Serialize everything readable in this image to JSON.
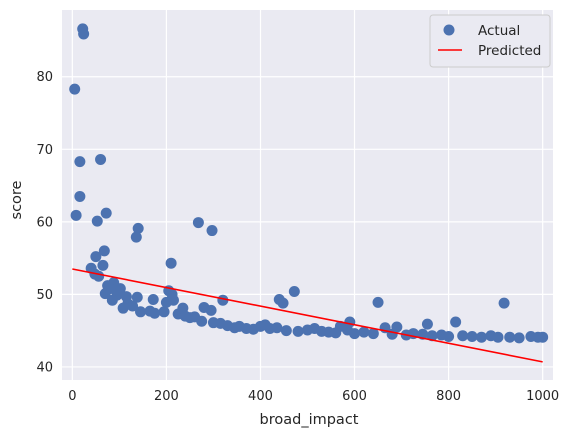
{
  "chart_data": {
    "type": "scatter",
    "title": "",
    "xlabel": "broad_impact",
    "ylabel": "score",
    "xlim": [
      -22,
      1022
    ],
    "ylim": [
      38.2,
      89.2
    ],
    "xticks": [
      0,
      200,
      400,
      600,
      800,
      1000
    ],
    "yticks": [
      40,
      50,
      60,
      70,
      80
    ],
    "grid": true,
    "legend": {
      "position": "top-right",
      "entries": [
        "Actual",
        "Predicted"
      ]
    },
    "colors": {
      "actual": "#4c72b0",
      "predicted": "#ff0000",
      "background": "#eaeaf2",
      "grid": "#ffffff"
    },
    "series": [
      {
        "name": "Actual",
        "type": "scatter",
        "points": [
          [
            22,
            86.6
          ],
          [
            24,
            85.9
          ],
          [
            5,
            78.3
          ],
          [
            16,
            68.3
          ],
          [
            60,
            68.6
          ],
          [
            16,
            63.5
          ],
          [
            72,
            61.2
          ],
          [
            8,
            60.9
          ],
          [
            53,
            60.1
          ],
          [
            268,
            59.9
          ],
          [
            297,
            58.8
          ],
          [
            140,
            59.1
          ],
          [
            136,
            57.9
          ],
          [
            68,
            56.0
          ],
          [
            210,
            54.3
          ],
          [
            50,
            55.2
          ],
          [
            40,
            53.6
          ],
          [
            65,
            54.0
          ],
          [
            48,
            52.8
          ],
          [
            56,
            52.5
          ],
          [
            75,
            51.2
          ],
          [
            88,
            51.6
          ],
          [
            80,
            50.8
          ],
          [
            102,
            50.8
          ],
          [
            70,
            50.1
          ],
          [
            95,
            49.9
          ],
          [
            85,
            49.2
          ],
          [
            115,
            49.7
          ],
          [
            118,
            48.7
          ],
          [
            138,
            49.6
          ],
          [
            108,
            48.1
          ],
          [
            128,
            48.4
          ],
          [
            145,
            47.6
          ],
          [
            165,
            47.7
          ],
          [
            175,
            47.4
          ],
          [
            172,
            49.3
          ],
          [
            195,
            47.6
          ],
          [
            200,
            48.9
          ],
          [
            205,
            50.5
          ],
          [
            212,
            50.0
          ],
          [
            215,
            49.2
          ],
          [
            225,
            47.3
          ],
          [
            235,
            48.1
          ],
          [
            240,
            47.0
          ],
          [
            250,
            46.8
          ],
          [
            260,
            46.9
          ],
          [
            275,
            46.3
          ],
          [
            280,
            48.2
          ],
          [
            295,
            47.8
          ],
          [
            300,
            46.1
          ],
          [
            315,
            46.0
          ],
          [
            320,
            49.2
          ],
          [
            330,
            45.7
          ],
          [
            345,
            45.4
          ],
          [
            355,
            45.6
          ],
          [
            370,
            45.3
          ],
          [
            385,
            45.2
          ],
          [
            400,
            45.6
          ],
          [
            410,
            45.8
          ],
          [
            420,
            45.3
          ],
          [
            435,
            45.4
          ],
          [
            440,
            49.3
          ],
          [
            448,
            48.8
          ],
          [
            455,
            45.0
          ],
          [
            472,
            50.4
          ],
          [
            480,
            44.9
          ],
          [
            500,
            45.1
          ],
          [
            515,
            45.3
          ],
          [
            530,
            44.9
          ],
          [
            545,
            44.8
          ],
          [
            560,
            44.7
          ],
          [
            570,
            45.6
          ],
          [
            585,
            45.1
          ],
          [
            590,
            46.2
          ],
          [
            600,
            44.6
          ],
          [
            620,
            44.8
          ],
          [
            640,
            44.6
          ],
          [
            650,
            48.9
          ],
          [
            665,
            45.4
          ],
          [
            680,
            44.5
          ],
          [
            690,
            45.5
          ],
          [
            710,
            44.4
          ],
          [
            725,
            44.6
          ],
          [
            745,
            44.5
          ],
          [
            755,
            45.9
          ],
          [
            765,
            44.3
          ],
          [
            785,
            44.4
          ],
          [
            800,
            44.2
          ],
          [
            815,
            46.2
          ],
          [
            830,
            44.3
          ],
          [
            850,
            44.2
          ],
          [
            870,
            44.1
          ],
          [
            890,
            44.3
          ],
          [
            905,
            44.1
          ],
          [
            918,
            48.8
          ],
          [
            930,
            44.1
          ],
          [
            950,
            44.0
          ],
          [
            975,
            44.2
          ],
          [
            990,
            44.1
          ],
          [
            1000,
            44.1
          ]
        ]
      },
      {
        "name": "Predicted",
        "type": "line",
        "x": [
          0,
          1000
        ],
        "y": [
          53.5,
          40.7
        ]
      }
    ]
  }
}
